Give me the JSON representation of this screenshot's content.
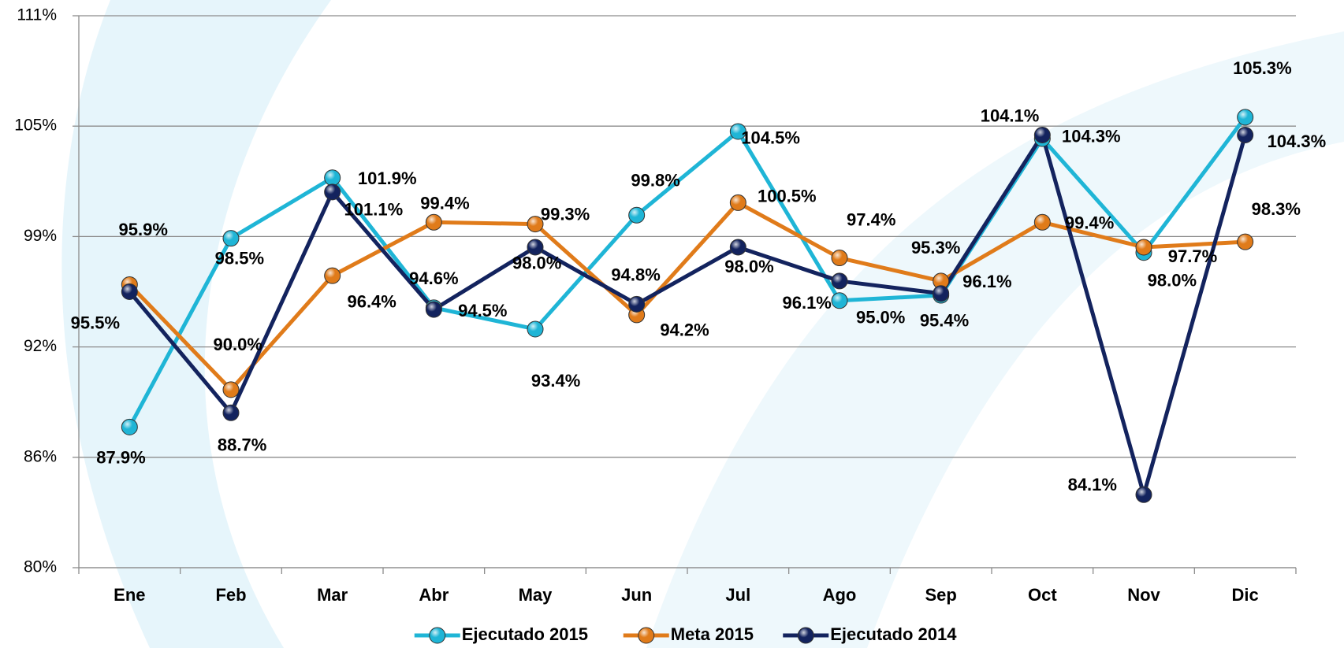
{
  "chart_data": {
    "type": "line",
    "categories": [
      "Ene",
      "Feb",
      "Mar",
      "Abr",
      "May",
      "Jun",
      "Jul",
      "Ago",
      "Sep",
      "Oct",
      "Nov",
      "Dic"
    ],
    "ylim": [
      80,
      111
    ],
    "yticks": [
      {
        "value": 80,
        "label": "80%"
      },
      {
        "value": 86.2,
        "label": "86%"
      },
      {
        "value": 92.4,
        "label": "92%"
      },
      {
        "value": 98.6,
        "label": "99%"
      },
      {
        "value": 104.8,
        "label": "105%"
      },
      {
        "value": 111,
        "label": "111%"
      }
    ],
    "grid": true,
    "series": [
      {
        "name": "Ejecutado 2015",
        "color": "#1fb5d6",
        "values": [
          87.9,
          98.5,
          101.9,
          94.6,
          93.4,
          99.8,
          104.5,
          95.0,
          95.3,
          104.1,
          97.7,
          105.3
        ],
        "value_labels": [
          "87.9%",
          "98.5%",
          "101.9%",
          "94.6%",
          "93.4%",
          "99.8%",
          "104.5%",
          "95.0%",
          "95.3%",
          "104.1%",
          "97.7%",
          "105.3%"
        ]
      },
      {
        "name": "Meta 2015",
        "color": "#e07b1a",
        "values": [
          95.9,
          90.0,
          96.4,
          99.4,
          99.3,
          94.2,
          100.5,
          97.4,
          96.1,
          99.4,
          98.0,
          98.3
        ],
        "value_labels": [
          "95.9%",
          "90.0%",
          "96.4%",
          "99.4%",
          "99.3%",
          "94.2%",
          "100.5%",
          "97.4%",
          "96.1%",
          "99.4%",
          "98.0%",
          "98.3%"
        ]
      },
      {
        "name": "Ejecutado 2014",
        "color": "#13235e",
        "values": [
          95.5,
          88.7,
          101.1,
          94.5,
          98.0,
          94.8,
          98.0,
          96.1,
          95.4,
          104.3,
          84.1,
          104.3
        ],
        "value_labels": [
          "95.5%",
          "88.7%",
          "101.1%",
          "94.5%",
          "98.0%",
          "94.8%",
          "98.0%",
          "96.1%",
          "95.4%",
          "104.3%",
          "84.1%",
          "104.3%"
        ]
      }
    ]
  }
}
